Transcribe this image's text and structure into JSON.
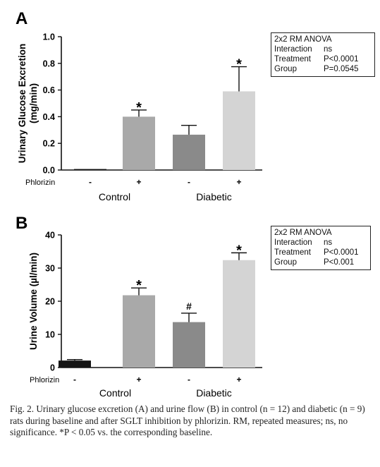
{
  "chart_data": [
    {
      "panel_label": "A",
      "type": "bar",
      "ylabel": "Urinary Glucose Excretion (mg/min)",
      "ylim": [
        0,
        1.0
      ],
      "yticks": [
        "0.0",
        "0.2",
        "0.4",
        "0.6",
        "0.8",
        "1.0"
      ],
      "treatment_label": "Phlorizin",
      "treatment_marks": [
        "-",
        "+",
        "-",
        "+"
      ],
      "groups": [
        "Control",
        "Diabetic"
      ],
      "values": [
        0.0,
        0.4,
        0.265,
        0.59
      ],
      "errors": [
        0.0,
        0.05,
        0.07,
        0.185
      ],
      "colors": [
        "#151515",
        "#a9a9a9",
        "#8a8a8a",
        "#d4d4d4"
      ],
      "annotations": [
        "",
        "*",
        "",
        "*"
      ],
      "stats_box": {
        "title": "2x2 RM ANOVA",
        "rows": [
          {
            "label": "Interaction",
            "value": "ns"
          },
          {
            "label": "Treatment",
            "value": "P<0.0001"
          },
          {
            "label": "Group",
            "value": "P=0.0545"
          }
        ]
      }
    },
    {
      "panel_label": "B",
      "type": "bar",
      "ylabel": "Urine Volume (µl/min)",
      "ylim": [
        0,
        40
      ],
      "yticks": [
        "0",
        "10",
        "20",
        "30",
        "40"
      ],
      "treatment_label": "Phlorizin",
      "treatment_marks": [
        "-",
        "+",
        "-",
        "+"
      ],
      "groups": [
        "Control",
        "Diabetic"
      ],
      "values": [
        2.1,
        21.8,
        13.7,
        32.4
      ],
      "errors": [
        0.3,
        2.2,
        2.7,
        2.2
      ],
      "colors": [
        "#151515",
        "#a9a9a9",
        "#8a8a8a",
        "#d4d4d4"
      ],
      "annotations": [
        "",
        "*",
        "#",
        "*"
      ],
      "stats_box": {
        "title": "2x2 RM ANOVA",
        "rows": [
          {
            "label": "Interaction",
            "value": "ns"
          },
          {
            "label": "Treatment",
            "value": "P<0.0001"
          },
          {
            "label": "Group",
            "value": "P<0.001"
          }
        ]
      }
    }
  ],
  "caption": "Fig. 2. Urinary glucose excretion (A) and urine flow (B) in control (n = 12) and diabetic (n = 9) rats during baseline and after SGLT inhibition by phlorizin. RM, repeated measures; ns, no significance. *P < 0.05 vs. the corresponding baseline."
}
